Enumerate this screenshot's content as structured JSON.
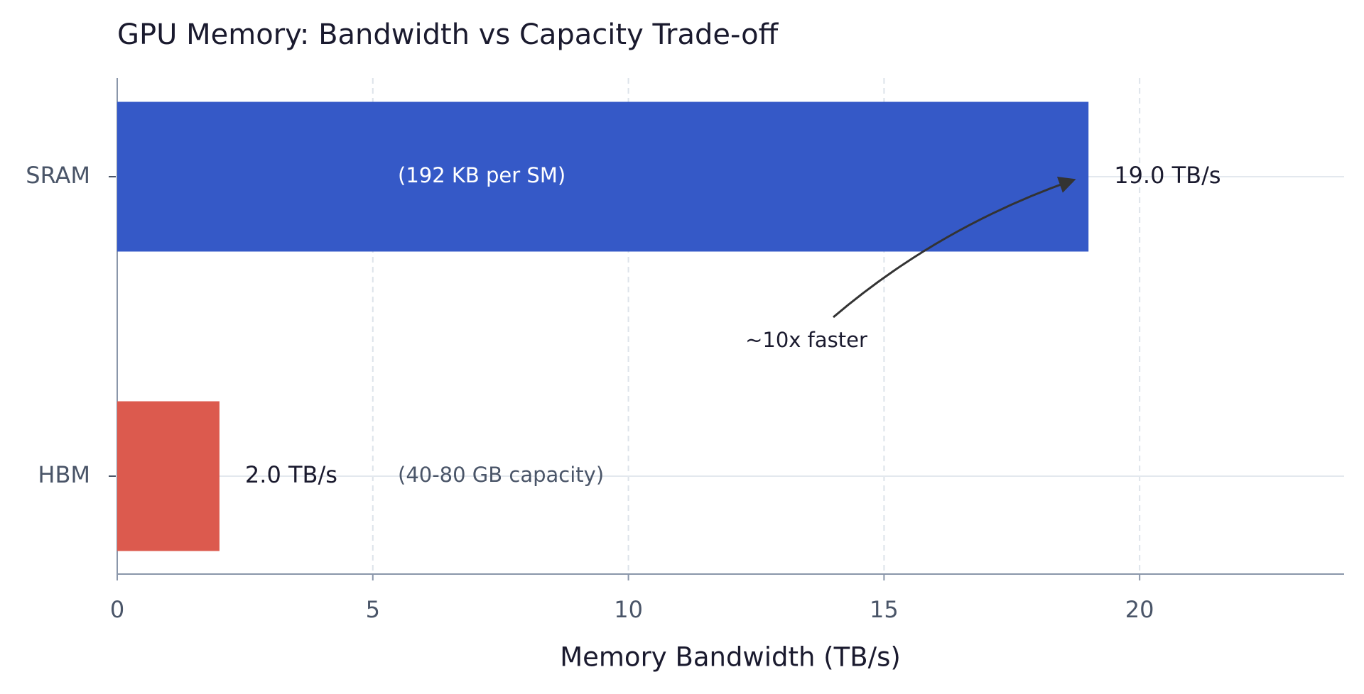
{
  "chart_data": {
    "type": "barh",
    "title": "GPU Memory: Bandwidth vs Capacity Trade-off",
    "xlabel": "Memory Bandwidth (TB/s)",
    "categories": [
      "SRAM",
      "HBM"
    ],
    "values": [
      19.0,
      2.0
    ],
    "value_labels": [
      "19.0 TB/s",
      "2.0 TB/s"
    ],
    "colors": [
      "#3559c7",
      "#dc5a4e"
    ],
    "xlim": [
      0,
      24
    ],
    "xticks": [
      0,
      5,
      10,
      15,
      20
    ],
    "grid": true,
    "annotations": [
      "(192 KB per SM)",
      "(40-80 GB capacity)",
      "~10x faster"
    ]
  }
}
